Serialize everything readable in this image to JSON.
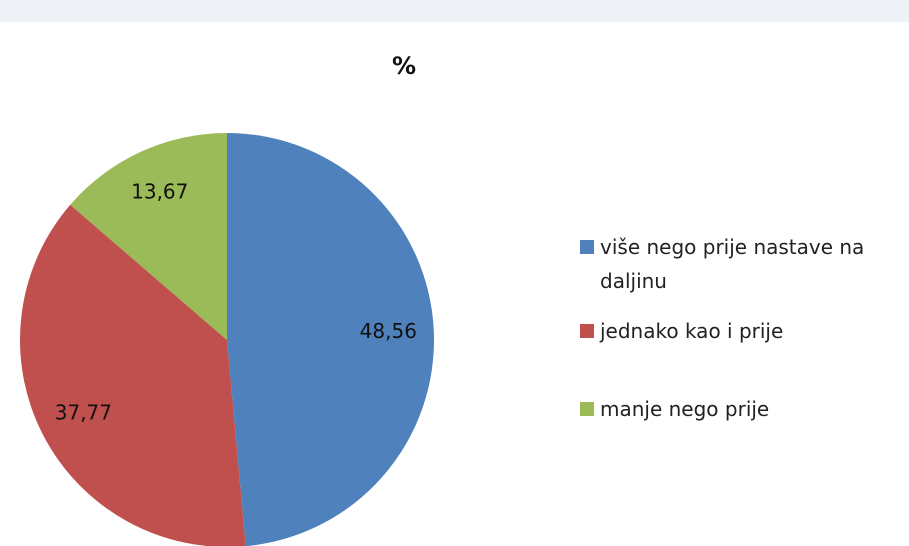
{
  "chart_data": {
    "type": "pie",
    "title": "%",
    "categories": [
      "više nego prije nastave na daljinu",
      "jednako kao i prije",
      "manje nego prije"
    ],
    "values": [
      48.56,
      37.77,
      13.67
    ],
    "value_labels": [
      "48,56",
      "37,77",
      "13,67"
    ],
    "colors": [
      "#4f81bd",
      "#c0504d",
      "#9bbb59"
    ],
    "legend": "right"
  }
}
